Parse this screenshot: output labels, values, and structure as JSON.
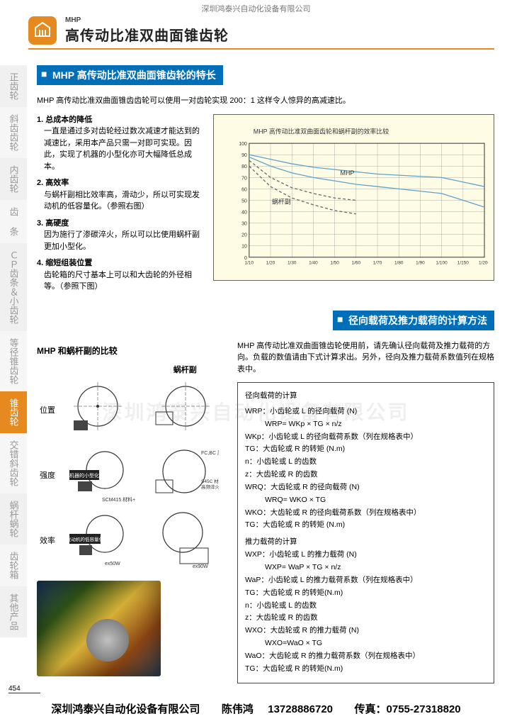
{
  "company_top": "深圳鸿泰兴自动化设备有限公司",
  "header": {
    "sup": "MHP",
    "main": "高传动比准双曲面锥齿轮"
  },
  "sidebar": {
    "items": [
      {
        "label": "正齿轮"
      },
      {
        "label": "斜齿齿轮"
      },
      {
        "label": "内齿轮"
      },
      {
        "label": "齿 条"
      },
      {
        "label": "ＣＰ齿条＆小齿轮"
      },
      {
        "label": "等径锥齿轮"
      },
      {
        "label": "锥齿轮"
      },
      {
        "label": "交错斜齿轮"
      },
      {
        "label": "蜗杆蜗轮"
      },
      {
        "label": "齿轮箱"
      },
      {
        "label": "其他产品"
      }
    ],
    "active_index": 6
  },
  "section1": {
    "title": "MHP 高传动比准双曲面锥齿轮的特长",
    "intro": "MHP 高传动比准双曲面锥齿齿轮可以使用一对齿轮实现 200：1 这样令人惊异的高减速比。",
    "features": [
      {
        "head": "1. 总成本的降低",
        "body": "一直是通过多对齿轮经过数次减速才能达到的减速比，采用本产品只需一对即可实现。因此，实现了机器的小型化亦可大幅降低总成本。"
      },
      {
        "head": "2. 高效率",
        "body": "与蜗杆副相比效率高，滑动少，所以可实现发动机的低容量化。（参照右图）"
      },
      {
        "head": "3. 高硬度",
        "body": "因为施行了渗碳淬火，所以可以比使用蜗杆副更加小型化。"
      },
      {
        "head": "4. 缩短组装位置",
        "body": "齿轮箱的尺寸基本上可以和大齿轮的外径相等。（参照下图）"
      }
    ]
  },
  "chart": {
    "title": "MHP 高传动比准双曲面齿轮和蜗杆副的效率比较",
    "y_values": [
      100,
      90,
      80,
      70,
      60,
      50,
      40,
      30,
      20,
      10,
      0
    ],
    "x_labels": [
      "1/10",
      "1/20",
      "1/30",
      "1/40",
      "1/50",
      "1/60",
      "1/70",
      "1/80",
      "1/90",
      "1/100",
      "1/150",
      "1/200"
    ],
    "label_mhp": "MHP",
    "label_worm": "蜗杆副",
    "colors": {
      "bg": "#fffce6",
      "grid": "#999999",
      "mhp_line": "#5fa2c9",
      "worm_line": "#666666"
    },
    "mhp_series1": [
      90,
      86,
      82,
      79,
      77,
      75,
      73,
      72,
      71,
      70,
      66,
      62
    ],
    "mhp_series2": [
      88,
      80,
      74,
      70,
      67,
      64,
      62,
      60,
      58,
      56,
      50,
      44
    ],
    "worm_series1": [
      85,
      70,
      61,
      56,
      52,
      50
    ],
    "worm_series2": [
      80,
      62,
      52,
      46,
      41,
      38
    ]
  },
  "section2": {
    "title": "径向载荷及推力载荷的计算方法",
    "intro": "MHP 高传动比准双曲面锥齿轮使用前，请先确认径向载荷及推力载荷的方向。负载的数值请由下式计算求出。另外，径向及推力载荷系数值列在规格表中。"
  },
  "compare": {
    "title": "MHP 和蜗杆副的比较",
    "col1": "",
    "col2": "蜗杆副",
    "rows": [
      "位置",
      "强度",
      "效率"
    ],
    "tags": {
      "mini": "机器的小型化",
      "low": "发动机的低容量化"
    },
    "materials": {
      "fcbc": "FC,BC 原材",
      "s45c": "S45C 材料\n高频淬火",
      "scm": "SCM415 材料+淬火"
    },
    "power": {
      "ex50": "ex50W",
      "ex90": "ex90W"
    }
  },
  "calc": {
    "h1": "径向载荷的计算",
    "l1": "WRP：小齿轮或 L 的径向载荷 (N)",
    "f1": "WRP= WKp × TG × n/z",
    "l2": "WKp：小齿轮或 L 的径向载荷系数（列在规格表中）",
    "l3": "TG：大齿轮或 R 的转矩 (N.m)",
    "l4": "n：小齿轮或 L 的齿数",
    "l5": "z：大齿轮或 R 的齿数",
    "l6": "WRQ：大齿轮或 R 的径向载荷 (N)",
    "f2": "WRQ= WKO × TG",
    "l7": "WKO：大齿轮或 R 的径向载荷系数（列在规格表中）",
    "l8": "TG：大齿轮或 R 的转矩 (N.m)",
    "h2": "推力载荷的计算",
    "l9": "WXP：小齿轮或 L 的推力载荷 (N)",
    "f3": "WXP= WaP × TG × n/z",
    "l10": "WaP：小齿轮或 L 的推力载荷系数（列在规格表中）",
    "l11": "TG：大齿轮或 R 的转矩(N.m)",
    "l12": "n：小齿轮或 L 的齿数",
    "l13": "z：大齿轮或 R 的齿数",
    "l14": "WXO：大齿轮或 R 的推力载荷 (N)",
    "f4": "WXO=WaO × TG",
    "l15": "WaO：大齿轮或 R 的推力载荷系数（列在规格表中）",
    "l16": "TG：大齿轮或 R 的转矩(N.m)"
  },
  "watermark": "深圳鸿泰兴自动化设备有限公司",
  "footer": {
    "pagenum": "454",
    "company": "深圳鸿泰兴自动化设备有限公司",
    "contact_label": "陈伟鸿",
    "phone": "13728886720",
    "fax_label": "传真：",
    "fax": "0755-27318820"
  }
}
